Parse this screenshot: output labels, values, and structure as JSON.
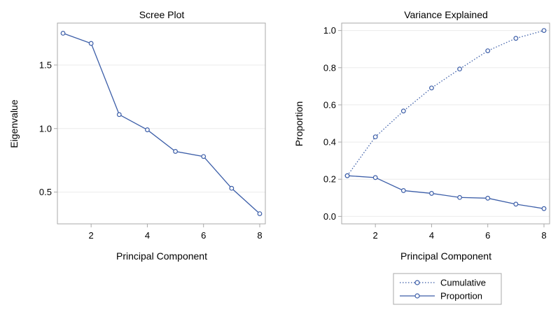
{
  "chart_data": [
    {
      "type": "line",
      "title": "Scree Plot",
      "xlabel": "Principal Component",
      "ylabel": "Eigenvalue",
      "x": [
        1,
        2,
        3,
        4,
        5,
        6,
        7,
        8
      ],
      "x_ticks": [
        2,
        4,
        6,
        8
      ],
      "y_ticks": [
        0.5,
        1.0,
        1.5
      ],
      "xlim": [
        0.8,
        8.2
      ],
      "ylim": [
        0.25,
        1.83
      ],
      "grid": "horizontal",
      "series": [
        {
          "values": [
            1.75,
            1.67,
            1.11,
            0.99,
            0.82,
            0.78,
            0.53,
            0.33
          ],
          "color": "#3c5ea8",
          "line_style": "solid",
          "marker": "circle"
        }
      ]
    },
    {
      "type": "line",
      "title": "Variance Explained",
      "xlabel": "Principal Component",
      "ylabel": "Proportion",
      "x": [
        1,
        2,
        3,
        4,
        5,
        6,
        7,
        8
      ],
      "x_ticks": [
        2,
        4,
        6,
        8
      ],
      "y_ticks": [
        0.0,
        0.2,
        0.4,
        0.6,
        0.8,
        1.0
      ],
      "xlim": [
        0.8,
        8.2
      ],
      "ylim": [
        -0.04,
        1.04
      ],
      "grid": "horizontal",
      "legend_position": "bottom",
      "series": [
        {
          "name": "Cumulative",
          "values": [
            0.219,
            0.428,
            0.567,
            0.691,
            0.793,
            0.891,
            0.958,
            1.0
          ],
          "color": "#3c5ea8",
          "line_style": "dotted",
          "marker": "circle"
        },
        {
          "name": "Proportion",
          "values": [
            0.219,
            0.209,
            0.139,
            0.124,
            0.102,
            0.098,
            0.066,
            0.042
          ],
          "color": "#3c5ea8",
          "line_style": "solid",
          "marker": "circle"
        }
      ]
    }
  ]
}
